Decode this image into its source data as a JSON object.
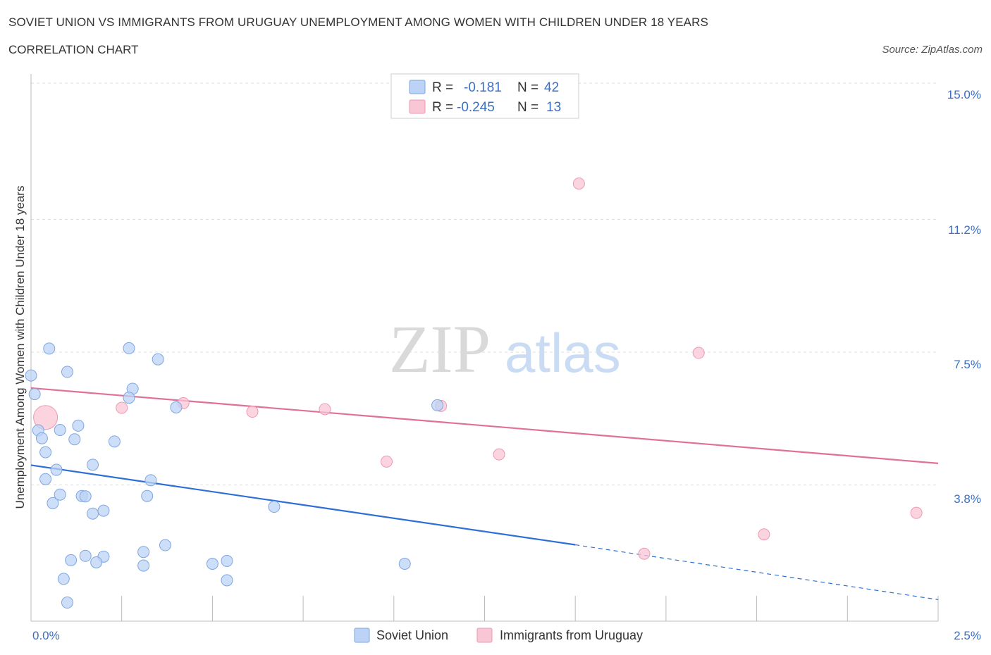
{
  "header": {
    "title": "SOVIET UNION VS IMMIGRANTS FROM URUGUAY UNEMPLOYMENT AMONG WOMEN WITH CHILDREN UNDER 18 YEARS",
    "subtitle": "CORRELATION CHART",
    "source": "Source: ZipAtlas.com"
  },
  "watermark": {
    "zip": "ZIP",
    "atlas": "atlas"
  },
  "stats_box": {
    "r_label": "R =",
    "n_label": "N =",
    "rows": [
      {
        "series": "Soviet Union",
        "r": "-0.181",
        "n": "42"
      },
      {
        "series": "Immigrants from Uruguay",
        "r": "-0.245",
        "n": "13"
      }
    ]
  },
  "colors": {
    "soviet_fill": "#bcd3f5",
    "soviet_stroke": "#7fa6e0",
    "soviet_line": "#2d6fd6",
    "uruguay_fill": "#f9c6d5",
    "uruguay_stroke": "#eb9ab2",
    "uruguay_line": "#e0709a",
    "tick_text": "#3a6fc4",
    "grid": "#dddddd"
  },
  "chart_data": {
    "type": "scatter",
    "title": "SOVIET UNION VS IMMIGRANTS FROM URUGUAY UNEMPLOYMENT AMONG WOMEN WITH CHILDREN UNDER 18 YEARS",
    "xlabel": "",
    "ylabel": "Unemployment Among Women with Children Under 18 years",
    "xlim": [
      0,
      2.5
    ],
    "ylim": [
      0,
      15.0
    ],
    "x_tick_labels": [
      "0.0%",
      "2.5%"
    ],
    "y_ticks": [
      3.8,
      7.5,
      11.2,
      15.0
    ],
    "y_tick_labels": [
      "3.8%",
      "7.5%",
      "11.2%",
      "15.0%"
    ],
    "grid": true,
    "legend_position": "bottom-center",
    "series": [
      {
        "name": "Soviet Union",
        "points": [
          {
            "x": 0.0,
            "y": 6.85
          },
          {
            "x": 0.01,
            "y": 6.33
          },
          {
            "x": 0.05,
            "y": 7.6
          },
          {
            "x": 0.1,
            "y": 6.95
          },
          {
            "x": 0.27,
            "y": 7.61
          },
          {
            "x": 0.35,
            "y": 7.3
          },
          {
            "x": 0.28,
            "y": 6.48
          },
          {
            "x": 0.27,
            "y": 6.23
          },
          {
            "x": 0.4,
            "y": 5.96
          },
          {
            "x": 0.02,
            "y": 5.32
          },
          {
            "x": 0.03,
            "y": 5.1
          },
          {
            "x": 0.08,
            "y": 5.33
          },
          {
            "x": 0.13,
            "y": 5.45
          },
          {
            "x": 0.12,
            "y": 5.07
          },
          {
            "x": 0.23,
            "y": 5.01
          },
          {
            "x": 0.04,
            "y": 4.71
          },
          {
            "x": 0.07,
            "y": 4.22
          },
          {
            "x": 0.17,
            "y": 4.36
          },
          {
            "x": 0.04,
            "y": 3.96
          },
          {
            "x": 0.33,
            "y": 3.93
          },
          {
            "x": 0.08,
            "y": 3.53
          },
          {
            "x": 0.14,
            "y": 3.49
          },
          {
            "x": 0.15,
            "y": 3.48
          },
          {
            "x": 0.32,
            "y": 3.49
          },
          {
            "x": 0.06,
            "y": 3.29
          },
          {
            "x": 0.2,
            "y": 3.08
          },
          {
            "x": 0.17,
            "y": 3.0
          },
          {
            "x": 0.67,
            "y": 3.19
          },
          {
            "x": 0.37,
            "y": 2.12
          },
          {
            "x": 0.31,
            "y": 1.93
          },
          {
            "x": 0.15,
            "y": 1.82
          },
          {
            "x": 0.2,
            "y": 1.8
          },
          {
            "x": 0.11,
            "y": 1.7
          },
          {
            "x": 0.18,
            "y": 1.64
          },
          {
            "x": 0.54,
            "y": 1.68
          },
          {
            "x": 0.5,
            "y": 1.6
          },
          {
            "x": 0.31,
            "y": 1.55
          },
          {
            "x": 1.03,
            "y": 1.6
          },
          {
            "x": 1.12,
            "y": 6.02
          },
          {
            "x": 0.09,
            "y": 1.18
          },
          {
            "x": 0.54,
            "y": 1.14
          },
          {
            "x": 0.1,
            "y": 0.52
          }
        ],
        "trend": {
          "x": [
            0.0,
            1.5
          ],
          "y": [
            4.35,
            2.13
          ]
        },
        "trend_dashed": {
          "x": [
            1.5,
            2.5
          ],
          "y": [
            2.13,
            0.6
          ]
        }
      },
      {
        "name": "Immigrants from Uruguay",
        "points": [
          {
            "x": 0.04,
            "y": 5.68
          },
          {
            "x": 0.25,
            "y": 5.95
          },
          {
            "x": 0.42,
            "y": 6.08
          },
          {
            "x": 0.61,
            "y": 5.84
          },
          {
            "x": 0.81,
            "y": 5.91
          },
          {
            "x": 1.13,
            "y": 6.0
          },
          {
            "x": 1.51,
            "y": 12.2
          },
          {
            "x": 1.84,
            "y": 7.48
          },
          {
            "x": 0.98,
            "y": 4.45
          },
          {
            "x": 1.29,
            "y": 4.65
          },
          {
            "x": 1.69,
            "y": 1.88
          },
          {
            "x": 2.02,
            "y": 2.42
          },
          {
            "x": 2.44,
            "y": 3.02
          }
        ],
        "trend": {
          "x": [
            0.0,
            2.5
          ],
          "y": [
            6.5,
            4.4
          ]
        }
      }
    ]
  },
  "legend": {
    "items": [
      {
        "label": "Soviet Union"
      },
      {
        "label": "Immigrants from Uruguay"
      }
    ]
  }
}
